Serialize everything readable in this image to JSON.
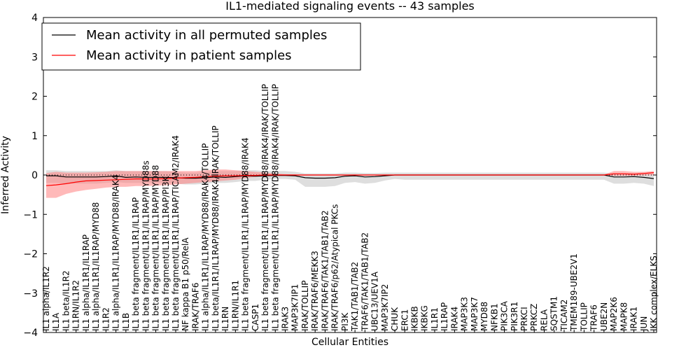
{
  "chart_data": {
    "type": "line",
    "title": "IL1-mediated signaling events -- 43 samples",
    "xlabel": "Cellular Entities",
    "ylabel": "Inferred Activity",
    "ylim": [
      -4,
      4
    ],
    "yticks": [
      -4,
      -3,
      -2,
      -1,
      0,
      1,
      2,
      3,
      4
    ],
    "grid": false,
    "legend_position": "top-left",
    "categories": [
      "IL1 alpha/IL1R2",
      "IL1A",
      "IL1 beta/IL1R2",
      "IL1RN/IL1R2",
      "IL1 alpha/IL1R1/IL1RAP",
      "IL1 alpha/IL1R1/IL1RAP/MYD88",
      "IL1R2",
      "IL1 alpha/IL1R1/IL1RAP/MYD88/IRAK4",
      "IL1B",
      "IL1 beta fragment/IL1R1/IL1RAP",
      "IL1 beta fragment/IL1R1/IL1RAP/MYD88s",
      "IL1 beta fragment/IL1R1/IL1RAP/MYD88",
      "IL1 beta fragment/IL1R1/IL1RAP/PI3K",
      "IL1 beta fragment/IL1R1/IL1RAP/TICAM2/IRAK4",
      "NF kappa B1 p50/RelA",
      "IRAK/TRAF6",
      "IL1 alpha/IL1R1/IL1RAP/MYD88/IRAK4/TOLLIP",
      "IL1 beta/IL1R1/IL1RAP/MYD88/IRAK4/IRAK/TOLLIP",
      "IL1RN",
      "IL1RN/IL1R1",
      "IL1 beta fragment/IL1R1/IL1RAP/MYD88/IRAK4",
      "CASP1",
      "IL1 beta fragment/IL1R1/IL1RAP/MYD88/IRAK4/IRAK/TOLLIP",
      "IL1 beta fragment/IL1R1/IL1RAP/MYD88/IRAK4/IRAK/TOLLIP",
      "IRAK3",
      "MAP3K7IP1",
      "IRAK/TOLLIP",
      "IRAK/TRAF6/MEKK3",
      "IRAK/TRAF6/TAK1/TAB1/TAB2",
      "IRAK/TRAF6/p62/Atypical PKCs",
      "PI3K",
      "TAK1/TAB1/TAB2",
      "TRAF6/TAK1/TAB1/TAB2",
      "UBC13/UEV1A",
      "MAP3K7IP2",
      "CHUK",
      "ERC1",
      "IKBKB",
      "IKBKG",
      "IL1R1",
      "IL1RAP",
      "IRAK4",
      "MAP3K3",
      "MAP3K7",
      "MYD88",
      "NFKB1",
      "PIK3CA",
      "PIK3R1",
      "PRKCI",
      "PRKCZ",
      "RELA",
      "SQSTM1",
      "TICAM2",
      "TMEM189-UBE2V1",
      "TOLLIP",
      "TRAF6",
      "UBE2N",
      "MAP2K6",
      "MAPK8",
      "IRAK1",
      "JUN",
      "IKK complex/ELKS"
    ],
    "series": [
      {
        "name": "Mean activity in all permuted samples",
        "color": "#000000",
        "values": [
          -0.02,
          -0.02,
          -0.05,
          -0.05,
          -0.05,
          -0.05,
          -0.04,
          -0.02,
          -0.06,
          -0.05,
          -0.06,
          -0.06,
          -0.06,
          -0.07,
          -0.08,
          -0.08,
          -0.07,
          -0.05,
          -0.06,
          -0.04,
          -0.02,
          -0.03,
          -0.02,
          -0.01,
          -0.01,
          -0.02,
          -0.07,
          -0.08,
          -0.08,
          -0.07,
          -0.03,
          -0.02,
          -0.05,
          -0.04,
          -0.02,
          0.0,
          0.0,
          0.0,
          0.0,
          0.0,
          0.0,
          0.0,
          0.0,
          0.0,
          0.0,
          0.0,
          0.0,
          0.0,
          0.0,
          0.0,
          0.0,
          0.0,
          0.0,
          0.0,
          0.0,
          0.0,
          0.0,
          -0.05,
          -0.05,
          -0.04,
          -0.06,
          -0.09
        ],
        "band_low": [
          -0.2,
          -0.2,
          -0.22,
          -0.22,
          -0.22,
          -0.22,
          -0.2,
          -0.18,
          -0.2,
          -0.2,
          -0.2,
          -0.2,
          -0.2,
          -0.22,
          -0.24,
          -0.24,
          -0.22,
          -0.2,
          -0.2,
          -0.18,
          -0.15,
          -0.15,
          -0.12,
          -0.1,
          -0.1,
          -0.12,
          -0.3,
          -0.3,
          -0.3,
          -0.28,
          -0.2,
          -0.18,
          -0.22,
          -0.2,
          -0.14,
          -0.1,
          -0.12,
          -0.12,
          -0.12,
          -0.12,
          -0.12,
          -0.12,
          -0.12,
          -0.12,
          -0.12,
          -0.12,
          -0.12,
          -0.12,
          -0.12,
          -0.12,
          -0.12,
          -0.12,
          -0.12,
          -0.12,
          -0.12,
          -0.12,
          -0.12,
          -0.22,
          -0.22,
          -0.2,
          -0.22,
          -0.28
        ],
        "band_high": [
          0.12,
          0.12,
          0.1,
          0.1,
          0.1,
          0.1,
          0.1,
          0.12,
          0.1,
          0.1,
          0.1,
          0.1,
          0.1,
          0.08,
          0.06,
          0.06,
          0.08,
          0.1,
          0.1,
          0.1,
          0.12,
          0.12,
          0.1,
          0.1,
          0.1,
          0.08,
          0.04,
          0.04,
          0.04,
          0.04,
          0.06,
          0.06,
          0.05,
          0.05,
          0.06,
          0.06,
          0.06,
          0.06,
          0.06,
          0.06,
          0.06,
          0.06,
          0.06,
          0.06,
          0.06,
          0.06,
          0.06,
          0.06,
          0.06,
          0.06,
          0.06,
          0.06,
          0.06,
          0.06,
          0.06,
          0.06,
          0.06,
          0.04,
          0.04,
          0.04,
          0.03,
          0.02
        ]
      },
      {
        "name": "Mean activity in patient samples",
        "color": "#ff0000",
        "values": [
          -0.27,
          -0.25,
          -0.22,
          -0.18,
          -0.15,
          -0.14,
          -0.13,
          -0.12,
          -0.11,
          -0.1,
          -0.1,
          -0.1,
          -0.09,
          -0.08,
          -0.07,
          -0.06,
          -0.04,
          -0.03,
          -0.02,
          -0.02,
          -0.01,
          -0.01,
          0.0,
          0.0,
          0.0,
          0.0,
          0.0,
          0.0,
          0.0,
          0.0,
          0.0,
          0.0,
          0.0,
          0.0,
          0.0,
          0.0,
          0.0,
          0.0,
          0.0,
          0.0,
          0.0,
          0.0,
          0.0,
          0.0,
          0.0,
          0.0,
          0.0,
          0.0,
          0.0,
          0.0,
          0.0,
          0.0,
          0.0,
          0.0,
          0.0,
          0.0,
          0.0,
          0.03,
          0.03,
          0.02,
          0.04,
          0.06
        ],
        "band_low": [
          -0.58,
          -0.58,
          -0.48,
          -0.42,
          -0.38,
          -0.35,
          -0.32,
          -0.3,
          -0.3,
          -0.28,
          -0.28,
          -0.27,
          -0.26,
          -0.24,
          -0.22,
          -0.2,
          -0.18,
          -0.16,
          -0.14,
          -0.12,
          -0.08,
          -0.05,
          -0.03,
          -0.02,
          -0.01,
          -0.01,
          -0.01,
          -0.01,
          -0.01,
          -0.01,
          -0.01,
          -0.01,
          -0.01,
          -0.01,
          -0.01,
          -0.01,
          -0.01,
          -0.01,
          -0.01,
          -0.01,
          -0.01,
          -0.01,
          -0.01,
          -0.01,
          -0.01,
          -0.01,
          -0.01,
          -0.01,
          -0.01,
          -0.01,
          -0.01,
          -0.01,
          -0.01,
          -0.01,
          -0.01,
          -0.01,
          -0.01,
          -0.02,
          -0.02,
          -0.02,
          -0.01,
          0.0
        ],
        "band_high": [
          0.05,
          0.08,
          0.06,
          0.06,
          0.06,
          0.07,
          0.08,
          0.1,
          0.1,
          0.1,
          0.1,
          0.1,
          0.1,
          0.1,
          0.1,
          0.1,
          0.12,
          0.14,
          0.14,
          0.12,
          0.1,
          0.08,
          0.06,
          0.04,
          0.02,
          0.01,
          0.01,
          0.01,
          0.01,
          0.01,
          0.01,
          0.01,
          0.01,
          0.01,
          0.01,
          0.01,
          0.01,
          0.01,
          0.01,
          0.01,
          0.01,
          0.01,
          0.01,
          0.01,
          0.01,
          0.01,
          0.01,
          0.01,
          0.01,
          0.01,
          0.01,
          0.01,
          0.01,
          0.01,
          0.01,
          0.01,
          0.01,
          0.1,
          0.1,
          0.08,
          0.08,
          0.1
        ]
      }
    ],
    "reference_line": 0
  }
}
